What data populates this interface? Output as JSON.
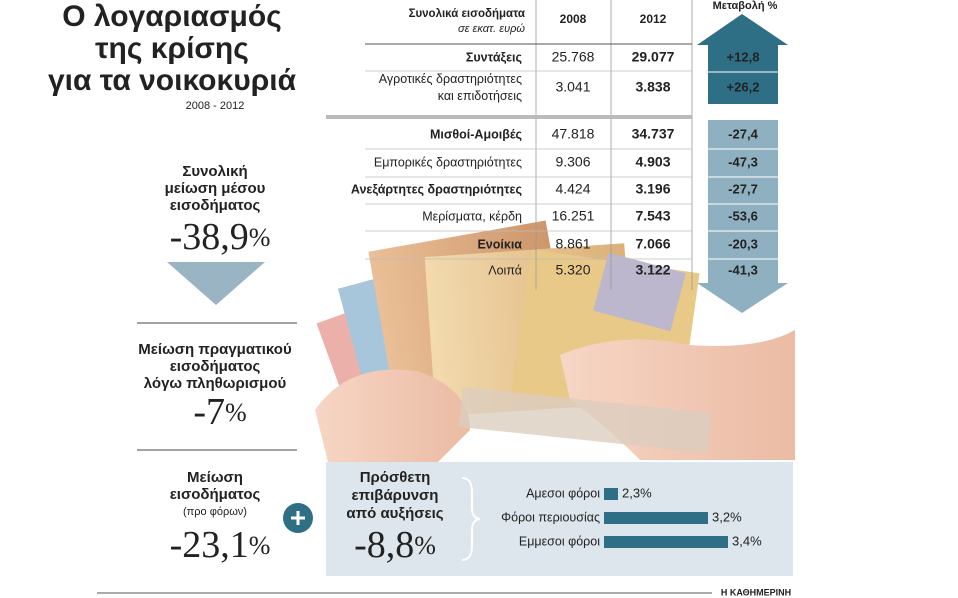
{
  "header": {
    "title": [
      "Ο λογαριασμός",
      "της κρίσης",
      "για τα νοικοκυριά"
    ],
    "subtitle": "2008 - 2012"
  },
  "summary": [
    {
      "label": [
        "Συνολική",
        "μείωση μέσου",
        "εισοδήματος"
      ],
      "value": "-38,9",
      "unit": "%"
    },
    {
      "label": [
        "Μείωση πραγματικού",
        "εισοδήματος",
        "λόγω πληθωρισμού"
      ],
      "value": "-7",
      "unit": "%"
    },
    {
      "label": [
        "Μείωση",
        "εισοδήματος",
        "(προ φόρων)"
      ],
      "value": "-23,1",
      "unit": "%"
    }
  ],
  "table": {
    "header": {
      "label": [
        "Συνολικά εισοδήματα",
        "σε εκατ. ευρώ"
      ],
      "columns": [
        "2008",
        "2012"
      ],
      "change": "Μεταβολή %"
    },
    "rows": [
      [
        [
          "Συντάξεις"
        ],
        "25.768",
        "29.077",
        "+12,8"
      ],
      [
        [
          "Αγροτικές δραστηριότητες",
          "και επιδοτήσεις"
        ],
        "3.041",
        "3.838",
        "+26,2"
      ],
      [
        [
          "Μισθοί-Αμοιβές"
        ],
        "47.818",
        "34.737",
        "-27,4"
      ],
      [
        [
          "Εμπορικές δραστηριότητες"
        ],
        "9.306",
        "4.903",
        "-47,3"
      ],
      [
        [
          "Ανεξάρτητες δραστηριότητες"
        ],
        "4.424",
        "3.196",
        "-27,7"
      ],
      [
        [
          "Μερίσματα, κέρδη"
        ],
        "16.251",
        "7.543",
        "-53,6"
      ],
      [
        [
          "Ενοίκια"
        ],
        "8.861",
        "7.066",
        "-20,3"
      ],
      [
        [
          "Λοιπά"
        ],
        "5.320",
        "3.122",
        "-41,3"
      ]
    ]
  },
  "extra": {
    "label": [
      "Πρόσθετη",
      "επιβάρυνση",
      "από αυξήσεις"
    ],
    "value": "-8,8",
    "unit": "%"
  },
  "chart_data": {
    "type": "bar",
    "categories": [
      "Αμεσοι φόροι",
      "Φόροι περιουσίας",
      "Εμμεσοι φόροι"
    ],
    "values": [
      2.3,
      3.2,
      3.4
    ],
    "value_labels": [
      "2,3%",
      "3,2%",
      "3,4%"
    ],
    "color": "#2f6f86",
    "xlim": [
      2.16,
      3.4
    ]
  },
  "source": "Η ΚΑΘΗΜΕΡΙΝΗ"
}
